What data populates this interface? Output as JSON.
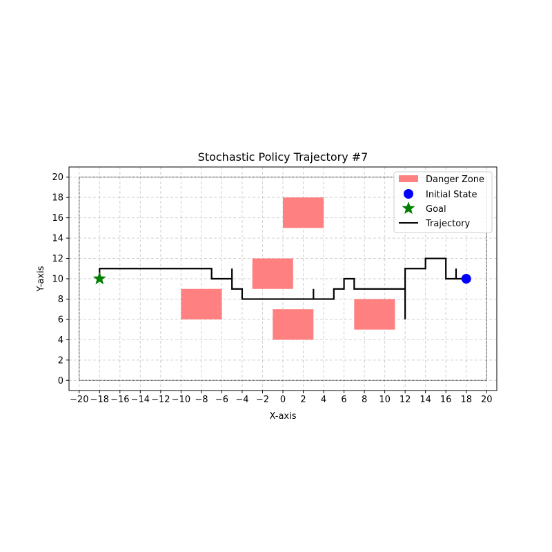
{
  "chart_data": {
    "type": "line",
    "title": "Stochastic Policy Trajectory #7",
    "xlabel": "X-axis",
    "ylabel": "Y-axis",
    "xlim": [
      -21,
      21
    ],
    "ylim": [
      -1,
      21
    ],
    "xticks": [
      -20,
      -18,
      -16,
      -14,
      -12,
      -10,
      -8,
      -6,
      -4,
      -2,
      0,
      2,
      4,
      6,
      8,
      10,
      12,
      14,
      16,
      18,
      20
    ],
    "yticks": [
      0,
      2,
      4,
      6,
      8,
      10,
      12,
      14,
      16,
      18,
      20
    ],
    "grid": true,
    "legend_position": "top-right",
    "boundary": {
      "x": [
        -20,
        20
      ],
      "y": [
        0,
        20
      ]
    },
    "danger_zones": {
      "name": "Danger Zone",
      "color": "#ff8080",
      "rects": [
        {
          "x0": 0,
          "x1": 4,
          "y0": 15,
          "y1": 18
        },
        {
          "x0": -3,
          "x1": 1,
          "y0": 9,
          "y1": 12
        },
        {
          "x0": -10,
          "x1": -6,
          "y0": 6,
          "y1": 9
        },
        {
          "x0": -1,
          "x1": 3,
          "y0": 4,
          "y1": 7
        },
        {
          "x0": 7,
          "x1": 11,
          "y0": 5,
          "y1": 8
        }
      ]
    },
    "initial_state": {
      "name": "Initial State",
      "x": 18,
      "y": 10,
      "color": "#0000ff"
    },
    "goal": {
      "name": "Goal",
      "x": -18,
      "y": 10,
      "color": "#008000"
    },
    "trajectory": {
      "name": "Trajectory",
      "color": "#000000",
      "points": [
        [
          18,
          10
        ],
        [
          17,
          10
        ],
        [
          17,
          11
        ],
        [
          17,
          10
        ],
        [
          16,
          10
        ],
        [
          16,
          12
        ],
        [
          14,
          12
        ],
        [
          14,
          11
        ],
        [
          12,
          11
        ],
        [
          12,
          6
        ],
        [
          12,
          9
        ],
        [
          7,
          9
        ],
        [
          7,
          10
        ],
        [
          6,
          10
        ],
        [
          6,
          9
        ],
        [
          5,
          9
        ],
        [
          5,
          8
        ],
        [
          3,
          8
        ],
        [
          3,
          9
        ],
        [
          3,
          8
        ],
        [
          -4,
          8
        ],
        [
          -4,
          9
        ],
        [
          -5,
          9
        ],
        [
          -5,
          11
        ],
        [
          -5,
          10
        ],
        [
          -7,
          10
        ],
        [
          -7,
          11
        ],
        [
          -18,
          11
        ],
        [
          -18,
          10
        ]
      ]
    }
  }
}
